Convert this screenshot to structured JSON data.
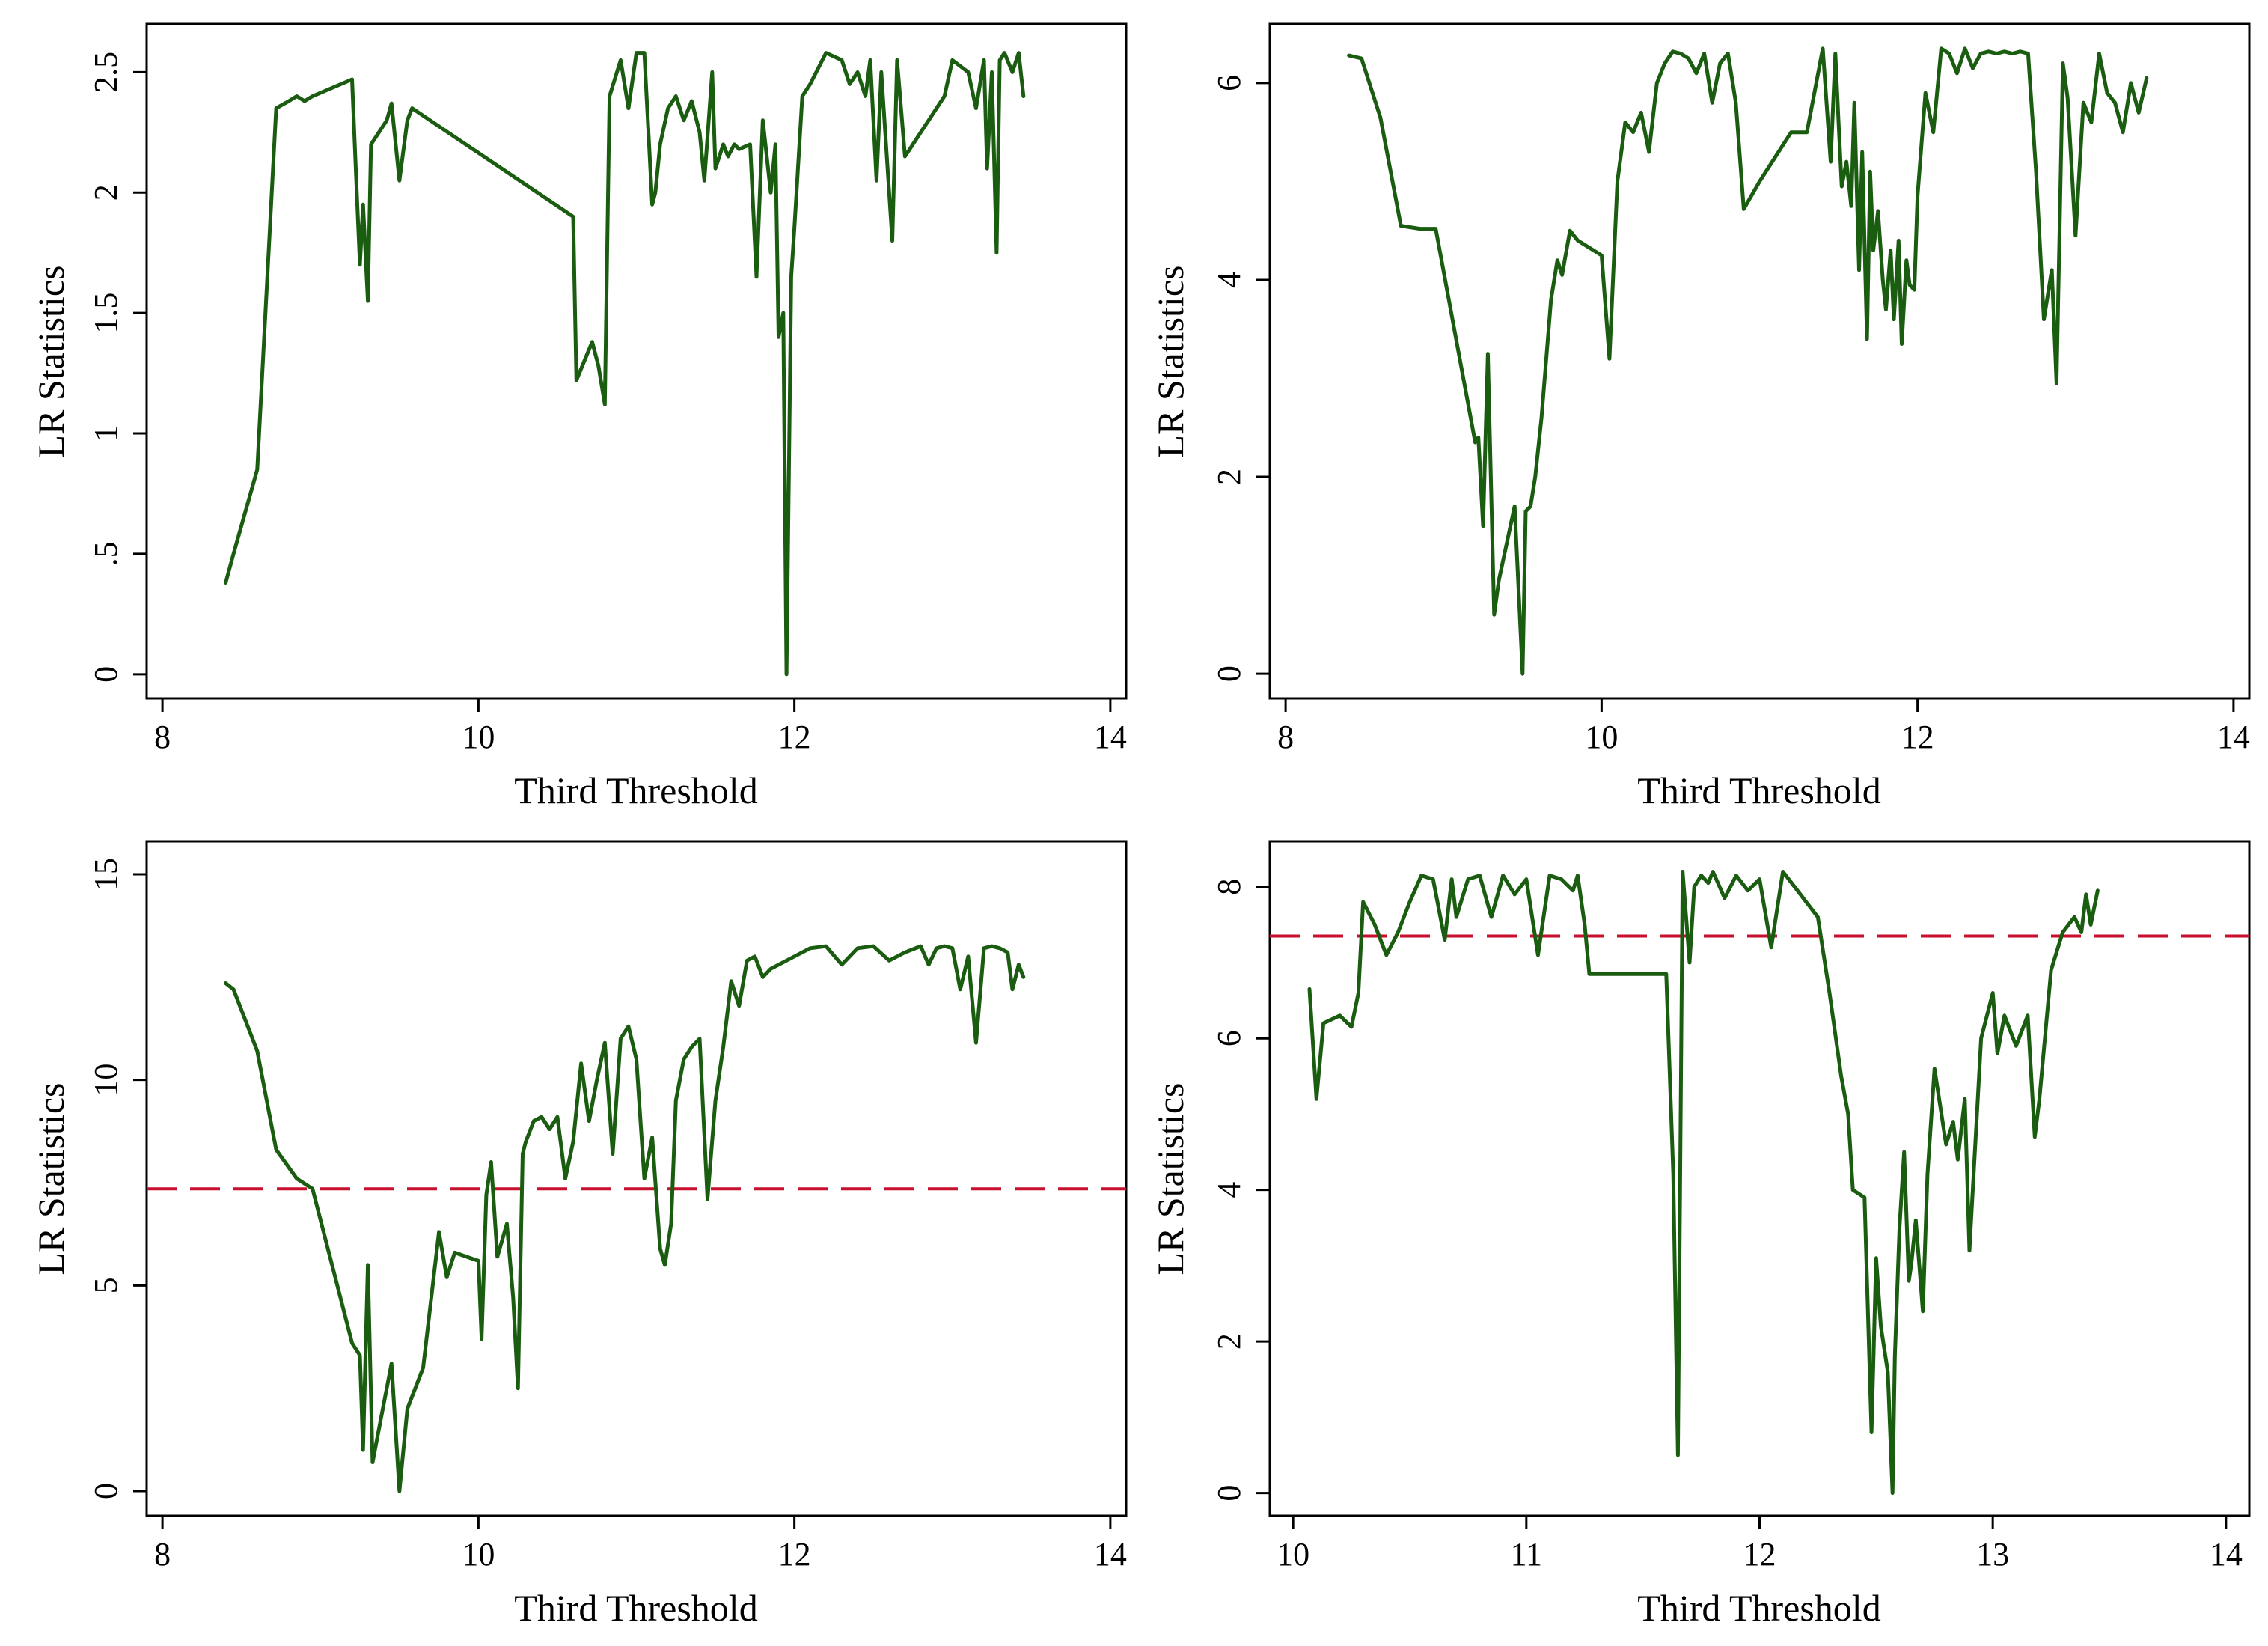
{
  "figure": {
    "background": "#ffffff",
    "line_color": "#1a5c10",
    "threshold_color": "#c8102e"
  },
  "chart_data": [
    {
      "type": "line",
      "panel": "top-left",
      "xlabel": "Third Threshold",
      "ylabel": "LR Statistics",
      "xlim": [
        7.9,
        14.1
      ],
      "ylim": [
        -0.1,
        2.7
      ],
      "xticks": [
        8,
        10,
        12,
        14
      ],
      "xtick_labels": [
        "8",
        "10",
        "12",
        "14"
      ],
      "yticks": [
        0,
        0.5,
        1,
        1.5,
        2,
        2.5
      ],
      "ytick_labels": [
        "0",
        ".5",
        "1",
        "1.5",
        "2",
        "2.5"
      ],
      "grid": false,
      "series": [
        {
          "name": "LR statistic",
          "x": [
            8.4,
            8.45,
            8.6,
            8.72,
            8.8,
            8.85,
            8.9,
            8.95,
            9.2,
            9.23,
            9.25,
            9.27,
            9.3,
            9.32,
            9.42,
            9.45,
            9.5,
            9.55,
            9.58,
            10.6,
            10.62,
            10.67,
            10.72,
            10.76,
            10.8,
            10.83,
            10.9,
            10.95,
            11.0,
            11.05,
            11.1,
            11.12,
            11.15,
            11.2,
            11.25,
            11.3,
            11.35,
            11.4,
            11.43,
            11.48,
            11.5,
            11.55,
            11.58,
            11.62,
            11.65,
            11.72,
            11.76,
            11.8,
            11.85,
            11.88,
            11.9,
            11.93,
            11.95,
            11.98,
            12.0,
            12.05,
            12.1,
            12.2,
            12.3,
            12.35,
            12.4,
            12.45,
            12.48,
            12.52,
            12.55,
            12.58,
            12.62,
            12.65,
            12.7,
            12.75,
            12.8,
            12.85,
            12.9,
            12.95,
            13.0,
            13.1,
            13.15,
            13.2,
            13.22,
            13.25,
            13.28,
            13.3,
            13.33,
            13.38,
            13.42,
            13.45
          ],
          "y": [
            0.38,
            0.5,
            0.85,
            2.35,
            2.38,
            2.4,
            2.38,
            2.4,
            2.47,
            2.0,
            1.7,
            1.95,
            1.55,
            2.2,
            2.3,
            2.37,
            2.05,
            2.3,
            2.35,
            1.9,
            1.22,
            1.3,
            1.38,
            1.28,
            1.12,
            2.4,
            2.55,
            2.35,
            2.58,
            2.58,
            1.95,
            2.0,
            2.2,
            2.35,
            2.4,
            2.3,
            2.38,
            2.25,
            2.05,
            2.5,
            2.1,
            2.2,
            2.15,
            2.2,
            2.18,
            2.2,
            1.65,
            2.3,
            2.0,
            2.2,
            1.4,
            1.5,
            0.0,
            1.65,
            1.85,
            2.4,
            2.45,
            2.58,
            2.55,
            2.45,
            2.5,
            2.4,
            2.55,
            2.05,
            2.5,
            2.2,
            1.8,
            2.55,
            2.15,
            2.2,
            2.25,
            2.3,
            2.35,
            2.4,
            2.55,
            2.5,
            2.35,
            2.55,
            2.1,
            2.5,
            1.75,
            2.55,
            2.58,
            2.5,
            2.58,
            2.4
          ]
        }
      ],
      "threshold": null
    },
    {
      "type": "line",
      "panel": "top-right",
      "xlabel": "Third Threshold",
      "ylabel": "LR Statistics",
      "xlim": [
        7.9,
        14.1
      ],
      "ylim": [
        -0.25,
        6.6
      ],
      "xticks": [
        8,
        10,
        12,
        14
      ],
      "xtick_labels": [
        "8",
        "10",
        "12",
        "14"
      ],
      "yticks": [
        0,
        2,
        4,
        6
      ],
      "ytick_labels": [
        "0",
        "2",
        "4",
        "6"
      ],
      "grid": false,
      "series": [
        {
          "name": "LR statistic",
          "x": [
            8.4,
            8.48,
            8.6,
            8.73,
            8.85,
            8.95,
            9.2,
            9.22,
            9.25,
            9.28,
            9.32,
            9.35,
            9.45,
            9.5,
            9.52,
            9.55,
            9.58,
            9.62,
            9.68,
            9.72,
            9.75,
            9.8,
            9.85,
            10.0,
            10.05,
            10.1,
            10.15,
            10.2,
            10.25,
            10.3,
            10.35,
            10.4,
            10.45,
            10.5,
            10.55,
            10.6,
            10.65,
            10.7,
            10.75,
            10.8,
            10.85,
            10.9,
            11.0,
            11.1,
            11.2,
            11.3,
            11.4,
            11.45,
            11.48,
            11.5,
            11.52,
            11.55,
            11.58,
            11.6,
            11.63,
            11.65,
            11.68,
            11.7,
            11.72,
            11.75,
            11.78,
            11.8,
            11.83,
            11.85,
            11.88,
            11.9,
            11.93,
            11.95,
            11.98,
            12.0,
            12.05,
            12.1,
            12.15,
            12.2,
            12.25,
            12.3,
            12.35,
            12.4,
            12.45,
            12.5,
            12.55,
            12.6,
            12.65,
            12.7,
            12.75,
            12.8,
            12.85,
            12.88,
            12.92,
            12.95,
            13.0,
            13.05,
            13.1,
            13.15,
            13.2,
            13.25,
            13.3,
            13.35,
            13.4,
            13.45
          ],
          "y": [
            6.28,
            6.25,
            5.65,
            4.55,
            4.52,
            4.52,
            2.35,
            2.4,
            1.5,
            3.25,
            0.6,
            0.95,
            1.7,
            0.0,
            1.65,
            1.7,
            2.0,
            2.6,
            3.8,
            4.2,
            4.05,
            4.5,
            4.4,
            4.25,
            3.2,
            5.0,
            5.6,
            5.5,
            5.7,
            5.3,
            6.0,
            6.2,
            6.32,
            6.3,
            6.25,
            6.1,
            6.3,
            5.8,
            6.2,
            6.3,
            5.8,
            4.72,
            5.0,
            5.25,
            5.5,
            5.5,
            6.35,
            5.2,
            6.3,
            5.6,
            4.95,
            5.2,
            4.75,
            5.8,
            4.1,
            5.3,
            3.4,
            5.1,
            4.3,
            4.7,
            4.0,
            3.7,
            4.3,
            3.6,
            4.4,
            3.35,
            4.2,
            3.95,
            3.9,
            4.85,
            5.9,
            5.5,
            6.35,
            6.3,
            6.1,
            6.35,
            6.15,
            6.3,
            6.32,
            6.3,
            6.32,
            6.3,
            6.32,
            6.3,
            5.1,
            3.6,
            4.1,
            2.95,
            6.2,
            5.85,
            4.45,
            5.8,
            5.6,
            6.3,
            5.9,
            5.8,
            5.5,
            6.0,
            5.7,
            6.05
          ]
        }
      ],
      "threshold": null
    },
    {
      "type": "line",
      "panel": "bottom-left",
      "xlabel": "Third Threshold",
      "ylabel": "LR Statistics",
      "xlim": [
        7.9,
        14.1
      ],
      "ylim": [
        -0.6,
        15.8
      ],
      "xticks": [
        8,
        10,
        12,
        14
      ],
      "xtick_labels": [
        "8",
        "10",
        "12",
        "14"
      ],
      "yticks": [
        0,
        5,
        10,
        15
      ],
      "ytick_labels": [
        "0",
        "5",
        "10",
        "15"
      ],
      "grid": false,
      "series": [
        {
          "name": "LR statistic",
          "x": [
            8.4,
            8.45,
            8.6,
            8.72,
            8.85,
            8.95,
            9.2,
            9.25,
            9.27,
            9.3,
            9.33,
            9.45,
            9.5,
            9.55,
            9.65,
            9.75,
            9.8,
            9.85,
            10.0,
            10.02,
            10.05,
            10.08,
            10.12,
            10.18,
            10.22,
            10.25,
            10.28,
            10.3,
            10.35,
            10.4,
            10.45,
            10.5,
            10.55,
            10.6,
            10.65,
            10.7,
            10.75,
            10.8,
            10.85,
            10.9,
            10.95,
            11.0,
            11.05,
            11.1,
            11.15,
            11.18,
            11.22,
            11.25,
            11.3,
            11.35,
            11.4,
            11.45,
            11.5,
            11.55,
            11.6,
            11.65,
            11.7,
            11.75,
            11.8,
            11.85,
            11.9,
            12.0,
            12.1,
            12.2,
            12.3,
            12.4,
            12.5,
            12.6,
            12.7,
            12.8,
            12.85,
            12.9,
            12.95,
            13.0,
            13.05,
            13.1,
            13.15,
            13.2,
            13.25,
            13.3,
            13.35,
            13.38,
            13.4,
            13.42,
            13.45
          ],
          "y": [
            12.35,
            12.2,
            10.7,
            8.3,
            7.6,
            7.35,
            3.6,
            3.3,
            1.0,
            5.5,
            0.7,
            3.1,
            0.0,
            2.0,
            3.0,
            6.3,
            5.2,
            5.8,
            5.6,
            3.7,
            7.2,
            8.0,
            5.7,
            6.5,
            4.7,
            2.5,
            8.2,
            8.5,
            9.0,
            9.1,
            8.8,
            9.1,
            7.6,
            8.5,
            10.4,
            9.0,
            10.0,
            10.9,
            8.2,
            11.0,
            11.3,
            10.5,
            7.6,
            8.6,
            5.9,
            5.5,
            6.5,
            9.5,
            10.5,
            10.8,
            11.0,
            7.1,
            9.5,
            10.8,
            12.4,
            11.8,
            12.9,
            13.0,
            12.5,
            12.7,
            12.8,
            13.0,
            13.2,
            13.25,
            12.8,
            13.2,
            13.25,
            12.9,
            13.1,
            13.25,
            12.8,
            13.2,
            13.25,
            13.2,
            12.2,
            13.0,
            10.9,
            13.2,
            13.25,
            13.2,
            13.1,
            12.2,
            12.5,
            12.8,
            12.5
          ]
        }
      ],
      "threshold": {
        "value": 7.35,
        "style": "dashed",
        "color": "#c8102e"
      }
    },
    {
      "type": "line",
      "panel": "bottom-right",
      "xlabel": "Third Threshold",
      "ylabel": "LR Statistics",
      "xlim": [
        9.9,
        14.1
      ],
      "ylim": [
        -0.3,
        8.6
      ],
      "xticks": [
        10,
        11,
        12,
        13,
        14
      ],
      "xtick_labels": [
        "10",
        "11",
        "12",
        "13",
        "14"
      ],
      "yticks": [
        0,
        2,
        4,
        6,
        8
      ],
      "ytick_labels": [
        "0",
        "2",
        "4",
        "6",
        "8"
      ],
      "grid": false,
      "series": [
        {
          "name": "LR statistic",
          "x": [
            10.07,
            10.1,
            10.13,
            10.2,
            10.25,
            10.28,
            10.3,
            10.35,
            10.4,
            10.45,
            10.5,
            10.55,
            10.6,
            10.65,
            10.68,
            10.7,
            10.75,
            10.8,
            10.85,
            10.9,
            10.95,
            11.0,
            11.05,
            11.1,
            11.15,
            11.2,
            11.22,
            11.25,
            11.27,
            11.3,
            11.45,
            11.6,
            11.63,
            11.65,
            11.67,
            11.7,
            11.72,
            11.75,
            11.78,
            11.8,
            11.85,
            11.9,
            11.95,
            12.0,
            12.05,
            12.1,
            12.15,
            12.2,
            12.25,
            12.3,
            12.35,
            12.38,
            12.4,
            12.45,
            12.48,
            12.5,
            12.52,
            12.55,
            12.57,
            12.58,
            12.6,
            12.62,
            12.64,
            12.65,
            12.67,
            12.7,
            12.72,
            12.75,
            12.78,
            12.8,
            12.83,
            12.85,
            12.88,
            12.9,
            12.95,
            13.0,
            13.02,
            13.05,
            13.1,
            13.15,
            13.18,
            13.2,
            13.25,
            13.28,
            13.3,
            13.35,
            13.38,
            13.4,
            13.42,
            13.45
          ],
          "y": [
            6.65,
            5.2,
            6.2,
            6.3,
            6.15,
            6.6,
            7.8,
            7.5,
            7.1,
            7.4,
            7.8,
            8.15,
            8.1,
            7.3,
            8.1,
            7.6,
            8.1,
            8.15,
            7.6,
            8.15,
            7.9,
            8.1,
            7.1,
            8.15,
            8.1,
            7.95,
            8.15,
            7.5,
            6.85,
            6.85,
            6.85,
            6.85,
            4.2,
            0.5,
            8.2,
            7.0,
            8.0,
            8.15,
            8.05,
            8.2,
            7.85,
            8.15,
            7.95,
            8.1,
            7.2,
            8.2,
            8.0,
            7.8,
            7.6,
            6.6,
            5.5,
            5.0,
            4.0,
            3.9,
            0.8,
            3.1,
            2.2,
            1.6,
            0.0,
            1.8,
            3.5,
            4.5,
            2.8,
            3.0,
            3.6,
            2.4,
            4.2,
            5.6,
            5.0,
            4.6,
            4.9,
            4.4,
            5.2,
            3.2,
            6.0,
            6.6,
            5.8,
            6.3,
            5.9,
            6.3,
            4.7,
            5.2,
            6.9,
            7.2,
            7.4,
            7.6,
            7.4,
            7.9,
            7.5,
            7.95
          ]
        }
      ],
      "threshold": {
        "value": 7.35,
        "style": "dashed",
        "color": "#c8102e"
      }
    }
  ]
}
